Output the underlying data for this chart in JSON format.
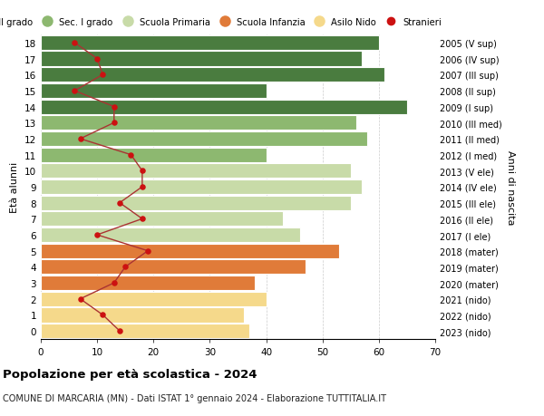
{
  "ages": [
    0,
    1,
    2,
    3,
    4,
    5,
    6,
    7,
    8,
    9,
    10,
    11,
    12,
    13,
    14,
    15,
    16,
    17,
    18
  ],
  "right_labels": [
    "2023 (nido)",
    "2022 (nido)",
    "2021 (nido)",
    "2020 (mater)",
    "2019 (mater)",
    "2018 (mater)",
    "2017 (I ele)",
    "2016 (II ele)",
    "2015 (III ele)",
    "2014 (IV ele)",
    "2013 (V ele)",
    "2012 (I med)",
    "2011 (II med)",
    "2010 (III med)",
    "2009 (I sup)",
    "2008 (II sup)",
    "2007 (III sup)",
    "2006 (IV sup)",
    "2005 (V sup)"
  ],
  "bar_values": [
    37,
    36,
    40,
    38,
    47,
    53,
    46,
    43,
    55,
    57,
    55,
    40,
    58,
    56,
    65,
    40,
    61,
    57,
    60
  ],
  "bar_colors": [
    "#f5d98b",
    "#f5d98b",
    "#f5d98b",
    "#e07b39",
    "#e07b39",
    "#e07b39",
    "#c8dba8",
    "#c8dba8",
    "#c8dba8",
    "#c8dba8",
    "#c8dba8",
    "#8db870",
    "#8db870",
    "#8db870",
    "#4a7c3f",
    "#4a7c3f",
    "#4a7c3f",
    "#4a7c3f",
    "#4a7c3f"
  ],
  "stranieri_values": [
    14,
    11,
    7,
    13,
    15,
    19,
    10,
    18,
    14,
    18,
    18,
    16,
    7,
    13,
    13,
    6,
    11,
    10,
    6
  ],
  "legend_labels": [
    "Sec. II grado",
    "Sec. I grado",
    "Scuola Primaria",
    "Scuola Infanzia",
    "Asilo Nido",
    "Stranieri"
  ],
  "legend_colors": [
    "#4a7c3f",
    "#8db870",
    "#c8dba8",
    "#e07b39",
    "#f5d98b",
    "#cc1111"
  ],
  "ylabel": "Età alunni",
  "right_ylabel": "Anni di nascita",
  "title_bold": "Popolazione per età scolastica - 2024",
  "subtitle": "COMUNE DI MARCARIA (MN) - Dati ISTAT 1° gennaio 2024 - Elaborazione TUTTITALIA.IT",
  "xlim": [
    0,
    70
  ],
  "xticks": [
    0,
    10,
    20,
    30,
    40,
    50,
    60,
    70
  ],
  "background_color": "#ffffff",
  "bar_edge_color": "#ffffff",
  "stranieri_color": "#cc1111",
  "stranieri_line_color": "#aa3333"
}
